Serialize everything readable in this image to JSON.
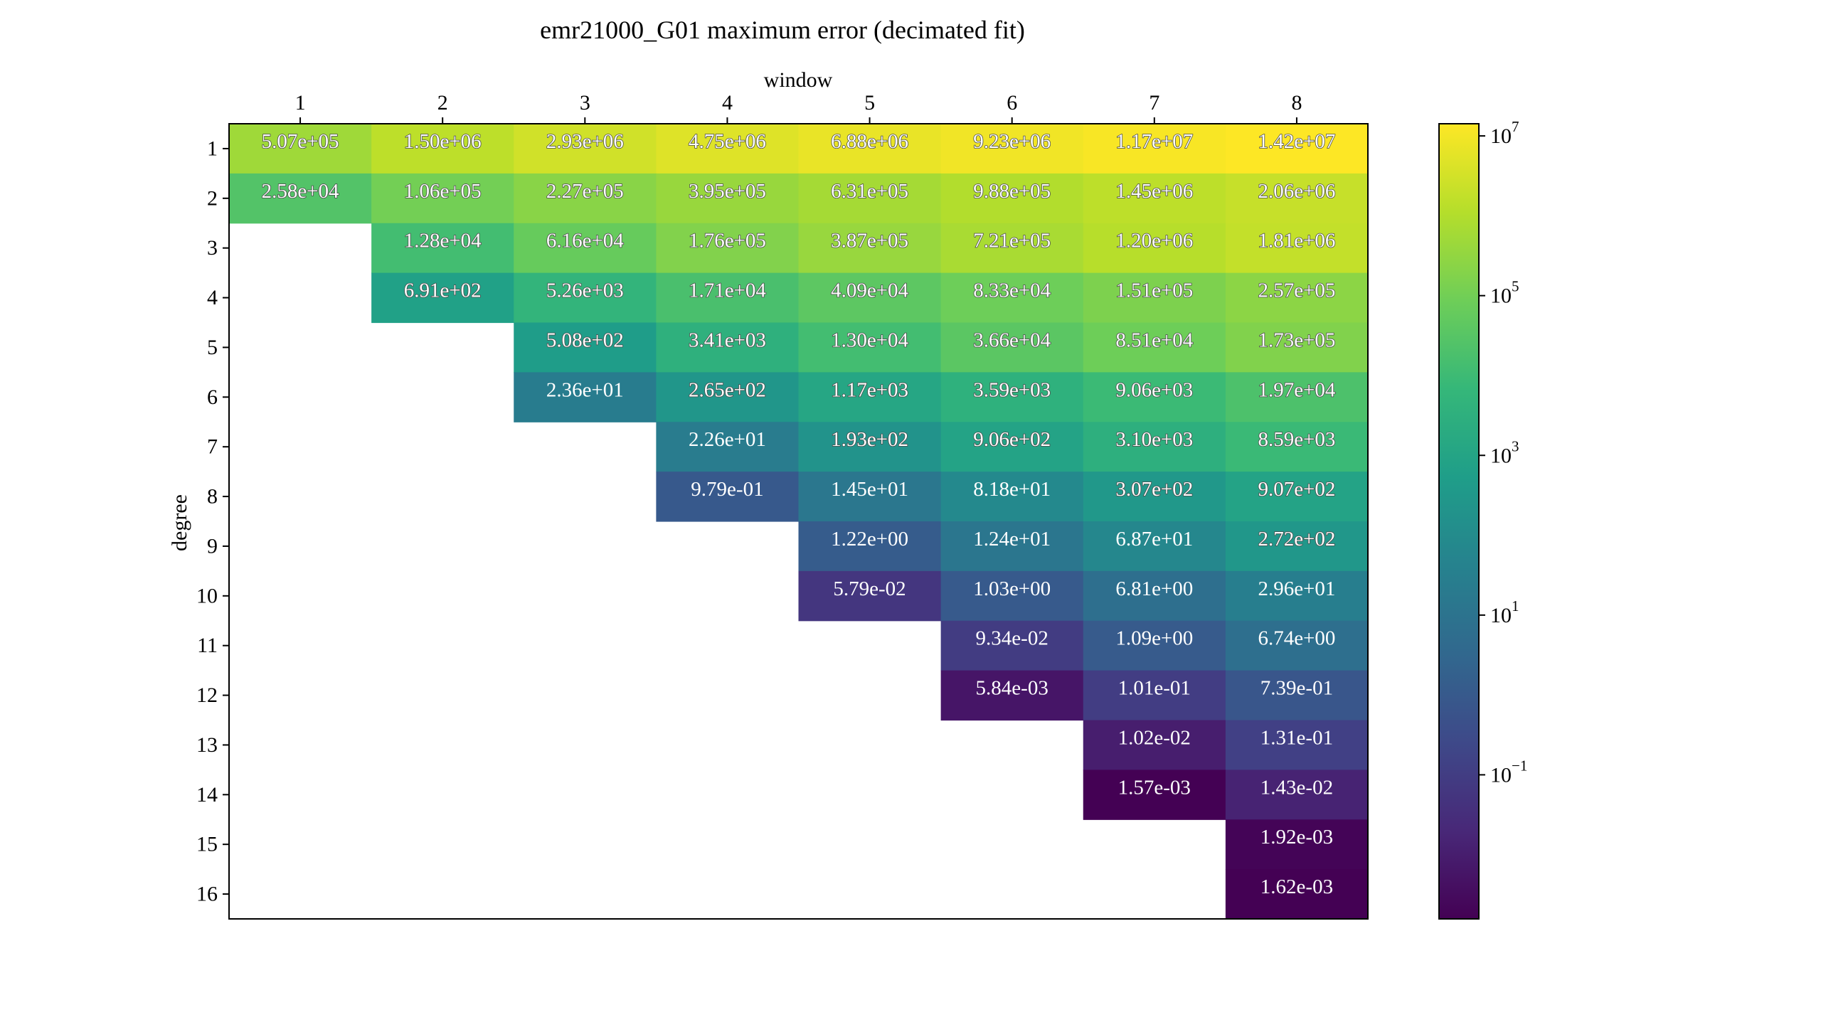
{
  "chart_data": {
    "type": "heatmap",
    "title": "emr21000_G01 maximum error (decimated fit)",
    "xlabel": "window",
    "ylabel": "degree",
    "x_categories": [
      "1",
      "2",
      "3",
      "4",
      "5",
      "6",
      "7",
      "8"
    ],
    "y_categories": [
      "1",
      "2",
      "3",
      "4",
      "5",
      "6",
      "7",
      "8",
      "9",
      "10",
      "11",
      "12",
      "13",
      "14",
      "15",
      "16"
    ],
    "x_axis_position": "top",
    "color_scale": "log",
    "colormap": "viridis",
    "colorbar": {
      "range": [
        0.00157,
        14200000
      ],
      "ticks": [
        {
          "value": 10000000,
          "base": "10",
          "exp": "7"
        },
        {
          "value": 100000,
          "base": "10",
          "exp": "5"
        },
        {
          "value": 1000,
          "base": "10",
          "exp": "3"
        },
        {
          "value": 10,
          "base": "10",
          "exp": "1"
        },
        {
          "value": 0.1,
          "base": "10",
          "exp": "−1"
        }
      ]
    },
    "values": [
      [
        507000,
        1500000,
        2930000,
        4750000,
        6880000,
        9230000,
        11700000,
        14200000
      ],
      [
        25800,
        106000,
        227000,
        395000,
        631000,
        988000,
        1450000,
        2060000
      ],
      [
        null,
        12800,
        61600,
        176000,
        387000,
        721000,
        1200000,
        1810000
      ],
      [
        null,
        691,
        5260,
        17100,
        40900,
        83300,
        151000,
        257000
      ],
      [
        null,
        null,
        508,
        3410,
        13000,
        36600,
        85100,
        173000
      ],
      [
        null,
        null,
        23.6,
        265,
        1170,
        3590,
        9060,
        19700
      ],
      [
        null,
        null,
        null,
        22.6,
        193,
        906,
        3100,
        8590
      ],
      [
        null,
        null,
        null,
        0.979,
        14.5,
        81.8,
        307,
        907
      ],
      [
        null,
        null,
        null,
        null,
        1.22,
        12.4,
        68.7,
        272
      ],
      [
        null,
        null,
        null,
        null,
        0.0579,
        1.03,
        6.81,
        29.6
      ],
      [
        null,
        null,
        null,
        null,
        null,
        0.0934,
        1.09,
        6.74
      ],
      [
        null,
        null,
        null,
        null,
        null,
        0.00584,
        0.101,
        0.739
      ],
      [
        null,
        null,
        null,
        null,
        null,
        null,
        0.0102,
        0.131
      ],
      [
        null,
        null,
        null,
        null,
        null,
        null,
        0.00157,
        0.0143
      ],
      [
        null,
        null,
        null,
        null,
        null,
        null,
        null,
        0.00192
      ],
      [
        null,
        null,
        null,
        null,
        null,
        null,
        null,
        0.00162
      ]
    ],
    "labels": [
      [
        "5.07e+05",
        "1.50e+06",
        "2.93e+06",
        "4.75e+06",
        "6.88e+06",
        "9.23e+06",
        "1.17e+07",
        "1.42e+07"
      ],
      [
        "2.58e+04",
        "1.06e+05",
        "2.27e+05",
        "3.95e+05",
        "6.31e+05",
        "9.88e+05",
        "1.45e+06",
        "2.06e+06"
      ],
      [
        null,
        "1.28e+04",
        "6.16e+04",
        "1.76e+05",
        "3.87e+05",
        "7.21e+05",
        "1.20e+06",
        "1.81e+06"
      ],
      [
        null,
        "6.91e+02",
        "5.26e+03",
        "1.71e+04",
        "4.09e+04",
        "8.33e+04",
        "1.51e+05",
        "2.57e+05"
      ],
      [
        null,
        null,
        "5.08e+02",
        "3.41e+03",
        "1.30e+04",
        "3.66e+04",
        "8.51e+04",
        "1.73e+05"
      ],
      [
        null,
        null,
        "2.36e+01",
        "2.65e+02",
        "1.17e+03",
        "3.59e+03",
        "9.06e+03",
        "1.97e+04"
      ],
      [
        null,
        null,
        null,
        "2.26e+01",
        "1.93e+02",
        "9.06e+02",
        "3.10e+03",
        "8.59e+03"
      ],
      [
        null,
        null,
        null,
        "9.79e-01",
        "1.45e+01",
        "8.18e+01",
        "3.07e+02",
        "9.07e+02"
      ],
      [
        null,
        null,
        null,
        null,
        "1.22e+00",
        "1.24e+01",
        "6.87e+01",
        "2.72e+02"
      ],
      [
        null,
        null,
        null,
        null,
        "5.79e-02",
        "1.03e+00",
        "6.81e+00",
        "2.96e+01"
      ],
      [
        null,
        null,
        null,
        null,
        null,
        "9.34e-02",
        "1.09e+00",
        "6.74e+00"
      ],
      [
        null,
        null,
        null,
        null,
        null,
        "5.84e-03",
        "1.01e-01",
        "7.39e-01"
      ],
      [
        null,
        null,
        null,
        null,
        null,
        null,
        "1.02e-02",
        "1.31e-01"
      ],
      [
        null,
        null,
        null,
        null,
        null,
        null,
        "1.57e-03",
        "1.43e-02"
      ],
      [
        null,
        null,
        null,
        null,
        null,
        null,
        null,
        "1.92e-03"
      ],
      [
        null,
        null,
        null,
        null,
        null,
        null,
        null,
        "1.62e-03"
      ]
    ]
  }
}
